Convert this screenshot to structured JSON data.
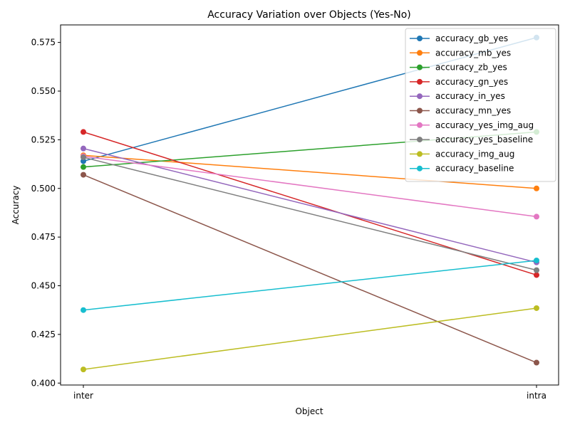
{
  "chart_data": {
    "type": "line",
    "title": "Accuracy Variation over Objects (Yes-No)",
    "xlabel": "Object",
    "ylabel": "Accuracy",
    "categories": [
      "inter",
      "intra"
    ],
    "ylim": [
      0.399,
      0.584
    ],
    "yticks": [
      "0.400",
      "0.425",
      "0.450",
      "0.475",
      "0.500",
      "0.525",
      "0.550",
      "0.575"
    ],
    "grid": false,
    "legend_position": "top-right",
    "series": [
      {
        "name": "accuracy_gb_yes",
        "color": "#1f77b4",
        "values": [
          0.514,
          0.5775
        ]
      },
      {
        "name": "accuracy_mb_yes",
        "color": "#ff7f0e",
        "values": [
          0.517,
          0.5
        ]
      },
      {
        "name": "accuracy_zb_yes",
        "color": "#2ca02c",
        "values": [
          0.511,
          0.529
        ]
      },
      {
        "name": "accuracy_gn_yes",
        "color": "#d62728",
        "values": [
          0.529,
          0.4555
        ]
      },
      {
        "name": "accuracy_in_yes",
        "color": "#9467bd",
        "values": [
          0.5205,
          0.462
        ]
      },
      {
        "name": "accuracy_mn_yes",
        "color": "#8c564b",
        "values": [
          0.507,
          0.4105
        ]
      },
      {
        "name": "accuracy_yes_img_aug",
        "color": "#e377c2",
        "values": [
          0.5165,
          0.4855
        ]
      },
      {
        "name": "accuracy_yes_baseline",
        "color": "#7f7f7f",
        "values": [
          0.516,
          0.458
        ]
      },
      {
        "name": "accuracy_img_aug",
        "color": "#bcbd22",
        "values": [
          0.407,
          0.4385
        ]
      },
      {
        "name": "accuracy_baseline",
        "color": "#17becf",
        "values": [
          0.4375,
          0.463
        ]
      }
    ]
  }
}
